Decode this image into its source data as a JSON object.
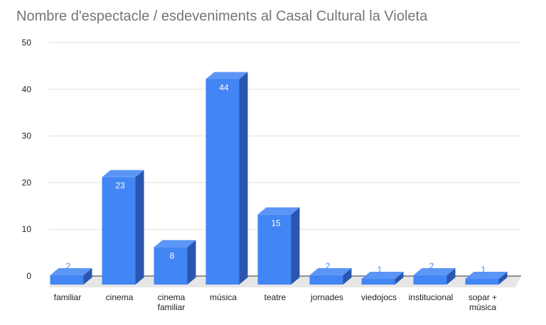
{
  "chart_data": {
    "type": "bar",
    "title": "Nombre d'espectacle / esdeveniments al Casal Cultural la Violeta",
    "xlabel": "",
    "ylabel": "",
    "categories": [
      [
        "familiar"
      ],
      [
        "cinema"
      ],
      [
        "cinema",
        "familiar"
      ],
      [
        "música"
      ],
      [
        "teatre"
      ],
      [
        "jornades"
      ],
      [
        "viedojocs"
      ],
      [
        "institucional"
      ],
      [
        "sopar +",
        "música"
      ]
    ],
    "values": [
      2,
      23,
      8,
      44,
      15,
      2,
      1,
      2,
      1
    ],
    "ylim": [
      0,
      50
    ],
    "yticks": [
      0,
      10,
      20,
      30,
      40,
      50
    ],
    "grid": true,
    "style": "3d-column",
    "colors": {
      "bar_front": "#4285f4",
      "bar_top": "#5b95f5",
      "bar_side": "#2a56b0",
      "label_inside": "#ffffff",
      "label_outside": "#4285f4",
      "grid": "#e0e0e0",
      "floor": "#e6e6e6",
      "axis": "#333333"
    }
  }
}
